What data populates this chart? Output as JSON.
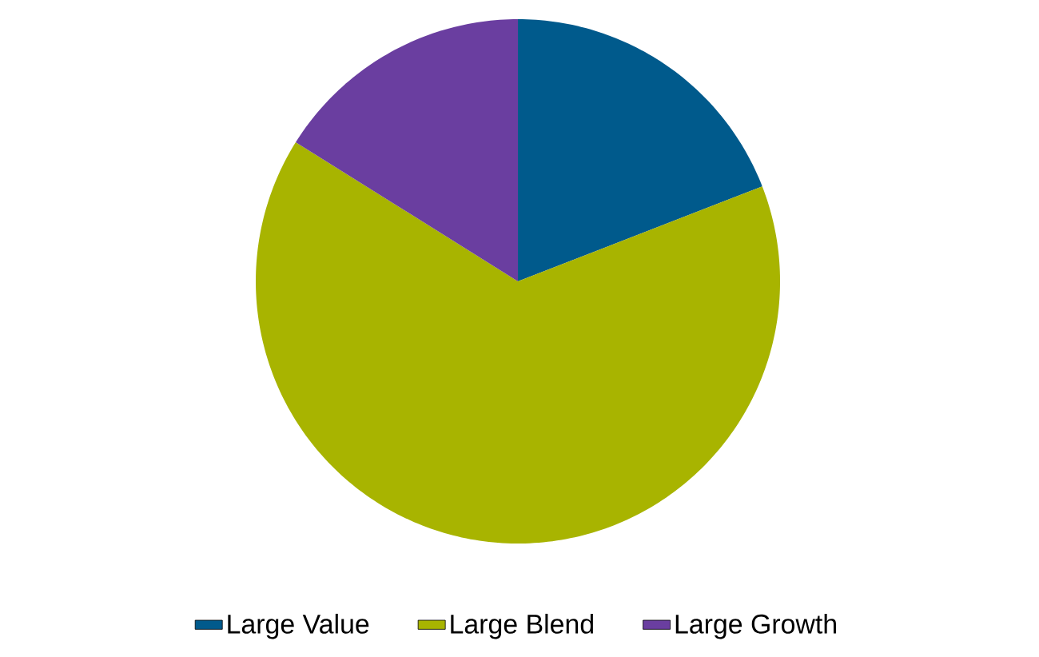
{
  "chart_data": {
    "type": "pie",
    "categories": [
      "Large Value",
      "Large Blend",
      "Large Growth"
    ],
    "values": [
      19.1,
      64.8,
      16.1
    ],
    "colors": [
      "#005a8c",
      "#a8b400",
      "#6a3ea0"
    ],
    "legend": "bottom"
  }
}
